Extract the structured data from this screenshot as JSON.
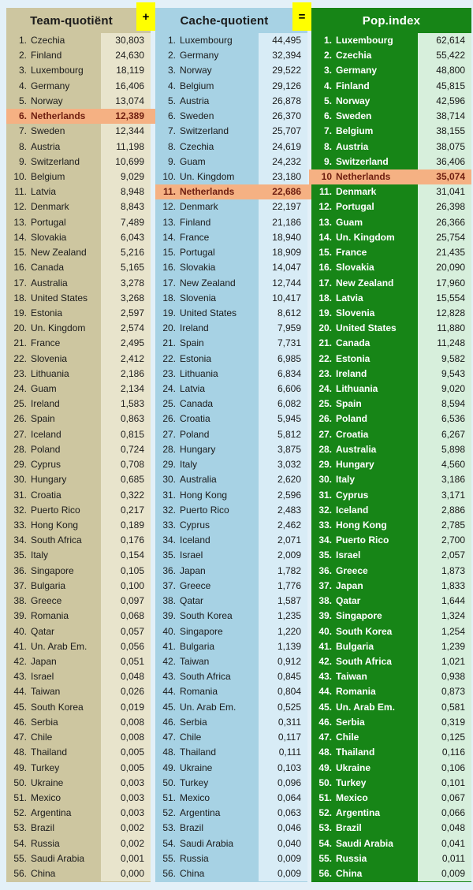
{
  "operators": {
    "plus": "+",
    "equals": "="
  },
  "colors": {
    "page_bg": "#e3f0f8",
    "operator_bg": "#ffff00",
    "highlight": {
      "bg": "#f5b183",
      "text": "#6e1e10"
    }
  },
  "chart_data": [
    {
      "type": "table",
      "title": "Team-quotiënt",
      "columns": [
        "rank",
        "country",
        "value"
      ],
      "highlight_index": 5,
      "colors": {
        "name_bg": "#cdc6a0",
        "value_bg": "#e8e4cc",
        "name_text": "#1b1b1b",
        "value_text": "#1b1b1b"
      },
      "rows": [
        [
          "1.",
          "Czechia",
          "30,803"
        ],
        [
          "2.",
          "Finland",
          "24,630"
        ],
        [
          "3.",
          "Luxembourg",
          "18,119"
        ],
        [
          "4.",
          "Germany",
          "16,406"
        ],
        [
          "5.",
          "Norway",
          "13,074"
        ],
        [
          "6.",
          "Netherlands",
          "12,389"
        ],
        [
          "7.",
          "Sweden",
          "12,344"
        ],
        [
          "8.",
          "Austria",
          "11,198"
        ],
        [
          "9.",
          "Switzerland",
          "10,699"
        ],
        [
          "10.",
          "Belgium",
          "9,029"
        ],
        [
          "11.",
          "Latvia",
          "8,948"
        ],
        [
          "12.",
          "Denmark",
          "8,843"
        ],
        [
          "13.",
          "Portugal",
          "7,489"
        ],
        [
          "14.",
          "Slovakia",
          "6,043"
        ],
        [
          "15.",
          "New Zealand",
          "5,216"
        ],
        [
          "16.",
          "Canada",
          "5,165"
        ],
        [
          "17.",
          "Australia",
          "3,278"
        ],
        [
          "18.",
          "United States",
          "3,268"
        ],
        [
          "19.",
          "Estonia",
          "2,597"
        ],
        [
          "20.",
          "Un. Kingdom",
          "2,574"
        ],
        [
          "21.",
          "France",
          "2,495"
        ],
        [
          "22.",
          "Slovenia",
          "2,412"
        ],
        [
          "23.",
          "Lithuania",
          "2,186"
        ],
        [
          "24.",
          "Guam",
          "2,134"
        ],
        [
          "25.",
          "Ireland",
          "1,583"
        ],
        [
          "26.",
          "Spain",
          "0,863"
        ],
        [
          "27.",
          "Iceland",
          "0,815"
        ],
        [
          "28.",
          "Poland",
          "0,724"
        ],
        [
          "29.",
          "Cyprus",
          "0,708"
        ],
        [
          "30.",
          "Hungary",
          "0,685"
        ],
        [
          "31.",
          "Croatia",
          "0,322"
        ],
        [
          "32.",
          "Puerto Rico",
          "0,217"
        ],
        [
          "33.",
          "Hong Kong",
          "0,189"
        ],
        [
          "34.",
          "South Africa",
          "0,176"
        ],
        [
          "35.",
          "Italy",
          "0,154"
        ],
        [
          "36.",
          "Singapore",
          "0,105"
        ],
        [
          "37.",
          "Bulgaria",
          "0,100"
        ],
        [
          "38.",
          "Greece",
          "0,097"
        ],
        [
          "39.",
          "Romania",
          "0,068"
        ],
        [
          "40.",
          "Qatar",
          "0,057"
        ],
        [
          "41.",
          "Un. Arab Em.",
          "0,056"
        ],
        [
          "42.",
          "Japan",
          "0,051"
        ],
        [
          "43.",
          "Israel",
          "0,048"
        ],
        [
          "44.",
          "Taiwan",
          "0,026"
        ],
        [
          "45.",
          "South Korea",
          "0,019"
        ],
        [
          "46.",
          "Serbia",
          "0,008"
        ],
        [
          "47.",
          "Chile",
          "0,008"
        ],
        [
          "48.",
          "Thailand",
          "0,005"
        ],
        [
          "49.",
          "Turkey",
          "0,005"
        ],
        [
          "50.",
          "Ukraine",
          "0,003"
        ],
        [
          "51.",
          "Mexico",
          "0,003"
        ],
        [
          "52.",
          "Argentina",
          "0,003"
        ],
        [
          "53.",
          "Brazil",
          "0,002"
        ],
        [
          "54.",
          "Russia",
          "0,002"
        ],
        [
          "55.",
          "Saudi Arabia",
          "0,001"
        ],
        [
          "56.",
          "China",
          "0,000"
        ]
      ]
    },
    {
      "type": "table",
      "title": "Cache-quotient",
      "columns": [
        "rank",
        "country",
        "value"
      ],
      "highlight_index": 10,
      "colors": {
        "name_bg": "#a7d2e4",
        "value_bg": "#d8ecf6",
        "name_text": "#1b1b1b",
        "value_text": "#1b1b1b"
      },
      "rows": [
        [
          "1.",
          "Luxembourg",
          "44,495"
        ],
        [
          "2.",
          "Germany",
          "32,394"
        ],
        [
          "3.",
          "Norway",
          "29,522"
        ],
        [
          "4.",
          "Belgium",
          "29,126"
        ],
        [
          "5.",
          "Austria",
          "26,878"
        ],
        [
          "6.",
          "Sweden",
          "26,370"
        ],
        [
          "7.",
          "Switzerland",
          "25,707"
        ],
        [
          "8.",
          "Czechia",
          "24,619"
        ],
        [
          "9.",
          "Guam",
          "24,232"
        ],
        [
          "10.",
          "Un. Kingdom",
          "23,180"
        ],
        [
          "11.",
          "Netherlands",
          "22,686"
        ],
        [
          "12.",
          "Denmark",
          "22,197"
        ],
        [
          "13.",
          "Finland",
          "21,186"
        ],
        [
          "14.",
          "France",
          "18,940"
        ],
        [
          "15.",
          "Portugal",
          "18,909"
        ],
        [
          "16.",
          "Slovakia",
          "14,047"
        ],
        [
          "17.",
          "New Zealand",
          "12,744"
        ],
        [
          "18.",
          "Slovenia",
          "10,417"
        ],
        [
          "19.",
          "United States",
          "8,612"
        ],
        [
          "20.",
          "Ireland",
          "7,959"
        ],
        [
          "21.",
          "Spain",
          "7,731"
        ],
        [
          "22.",
          "Estonia",
          "6,985"
        ],
        [
          "23.",
          "Lithuania",
          "6,834"
        ],
        [
          "24.",
          "Latvia",
          "6,606"
        ],
        [
          "25.",
          "Canada",
          "6,082"
        ],
        [
          "26.",
          "Croatia",
          "5,945"
        ],
        [
          "27.",
          "Poland",
          "5,812"
        ],
        [
          "28.",
          "Hungary",
          "3,875"
        ],
        [
          "29.",
          "Italy",
          "3,032"
        ],
        [
          "30.",
          "Australia",
          "2,620"
        ],
        [
          "31.",
          "Hong Kong",
          "2,596"
        ],
        [
          "32.",
          "Puerto Rico",
          "2,483"
        ],
        [
          "33.",
          "Cyprus",
          "2,462"
        ],
        [
          "34.",
          "Iceland",
          "2,071"
        ],
        [
          "35.",
          "Israel",
          "2,009"
        ],
        [
          "36.",
          "Japan",
          "1,782"
        ],
        [
          "37.",
          "Greece",
          "1,776"
        ],
        [
          "38.",
          "Qatar",
          "1,587"
        ],
        [
          "39.",
          "South Korea",
          "1,235"
        ],
        [
          "40.",
          "Singapore",
          "1,220"
        ],
        [
          "41.",
          "Bulgaria",
          "1,139"
        ],
        [
          "42.",
          "Taiwan",
          "0,912"
        ],
        [
          "43.",
          "South Africa",
          "0,845"
        ],
        [
          "44.",
          "Romania",
          "0,804"
        ],
        [
          "45.",
          "Un. Arab Em.",
          "0,525"
        ],
        [
          "46.",
          "Serbia",
          "0,311"
        ],
        [
          "47.",
          "Chile",
          "0,117"
        ],
        [
          "48.",
          "Thailand",
          "0,111"
        ],
        [
          "49.",
          "Ukraine",
          "0,103"
        ],
        [
          "50.",
          "Turkey",
          "0,096"
        ],
        [
          "51.",
          "Mexico",
          "0,064"
        ],
        [
          "52.",
          "Argentina",
          "0,063"
        ],
        [
          "53.",
          "Brazil",
          "0,046"
        ],
        [
          "54.",
          "Saudi Arabia",
          "0,040"
        ],
        [
          "55.",
          "Russia",
          "0,009"
        ],
        [
          "56.",
          "China",
          "0,009"
        ]
      ]
    },
    {
      "type": "table",
      "title": "Pop.index",
      "columns": [
        "rank",
        "country",
        "value"
      ],
      "highlight_index": 9,
      "colors": {
        "name_bg": "#178517",
        "value_bg": "#d7efdc",
        "name_text": "#ffffff",
        "value_text": "#161616"
      },
      "rows": [
        [
          "1.",
          "Luxembourg",
          "62,614"
        ],
        [
          "2.",
          "Czechia",
          "55,422"
        ],
        [
          "3.",
          "Germany",
          "48,800"
        ],
        [
          "4.",
          "Finland",
          "45,815"
        ],
        [
          "5.",
          "Norway",
          "42,596"
        ],
        [
          "6.",
          "Sweden",
          "38,714"
        ],
        [
          "7.",
          "Belgium",
          "38,155"
        ],
        [
          "8.",
          "Austria",
          "38,075"
        ],
        [
          "9.",
          "Switzerland",
          "36,406"
        ],
        [
          "10",
          "Netherlands",
          "35,074"
        ],
        [
          "11.",
          "Denmark",
          "31,041"
        ],
        [
          "12.",
          "Portugal",
          "26,398"
        ],
        [
          "13.",
          "Guam",
          "26,366"
        ],
        [
          "14.",
          "Un. Kingdom",
          "25,754"
        ],
        [
          "15.",
          "France",
          "21,435"
        ],
        [
          "16.",
          "Slovakia",
          "20,090"
        ],
        [
          "17.",
          "New Zealand",
          "17,960"
        ],
        [
          "18.",
          "Latvia",
          "15,554"
        ],
        [
          "19.",
          "Slovenia",
          "12,828"
        ],
        [
          "20.",
          "United States",
          "11,880"
        ],
        [
          "21.",
          "Canada",
          "11,248"
        ],
        [
          "22.",
          "Estonia",
          "9,582"
        ],
        [
          "23.",
          "Ireland",
          "9,543"
        ],
        [
          "24.",
          "Lithuania",
          "9,020"
        ],
        [
          "25.",
          "Spain",
          "8,594"
        ],
        [
          "26.",
          "Poland",
          "6,536"
        ],
        [
          "27.",
          "Croatia",
          "6,267"
        ],
        [
          "28.",
          "Australia",
          "5,898"
        ],
        [
          "29.",
          "Hungary",
          "4,560"
        ],
        [
          "30.",
          "Italy",
          "3,186"
        ],
        [
          "31.",
          "Cyprus",
          "3,171"
        ],
        [
          "32.",
          "Iceland",
          "2,886"
        ],
        [
          "33.",
          "Hong Kong",
          "2,785"
        ],
        [
          "34.",
          "Puerto Rico",
          "2,700"
        ],
        [
          "35.",
          "Israel",
          "2,057"
        ],
        [
          "36.",
          "Greece",
          "1,873"
        ],
        [
          "37.",
          "Japan",
          "1,833"
        ],
        [
          "38.",
          "Qatar",
          "1,644"
        ],
        [
          "39.",
          "Singapore",
          "1,324"
        ],
        [
          "40.",
          "South Korea",
          "1,254"
        ],
        [
          "41.",
          "Bulgaria",
          "1,239"
        ],
        [
          "42.",
          "South Africa",
          "1,021"
        ],
        [
          "43.",
          "Taiwan",
          "0,938"
        ],
        [
          "44.",
          "Romania",
          "0,873"
        ],
        [
          "45.",
          "Un. Arab Em.",
          "0,581"
        ],
        [
          "46.",
          "Serbia",
          "0,319"
        ],
        [
          "47.",
          "Chile",
          "0,125"
        ],
        [
          "48.",
          "Thailand",
          "0,116"
        ],
        [
          "49.",
          "Ukraine",
          "0,106"
        ],
        [
          "50.",
          "Turkey",
          "0,101"
        ],
        [
          "51.",
          "Mexico",
          "0,067"
        ],
        [
          "52.",
          "Argentina",
          "0,066"
        ],
        [
          "53.",
          "Brazil",
          "0,048"
        ],
        [
          "54.",
          "Saudi Arabia",
          "0,041"
        ],
        [
          "55.",
          "Russia",
          "0,011"
        ],
        [
          "56.",
          "China",
          "0,009"
        ]
      ]
    }
  ]
}
